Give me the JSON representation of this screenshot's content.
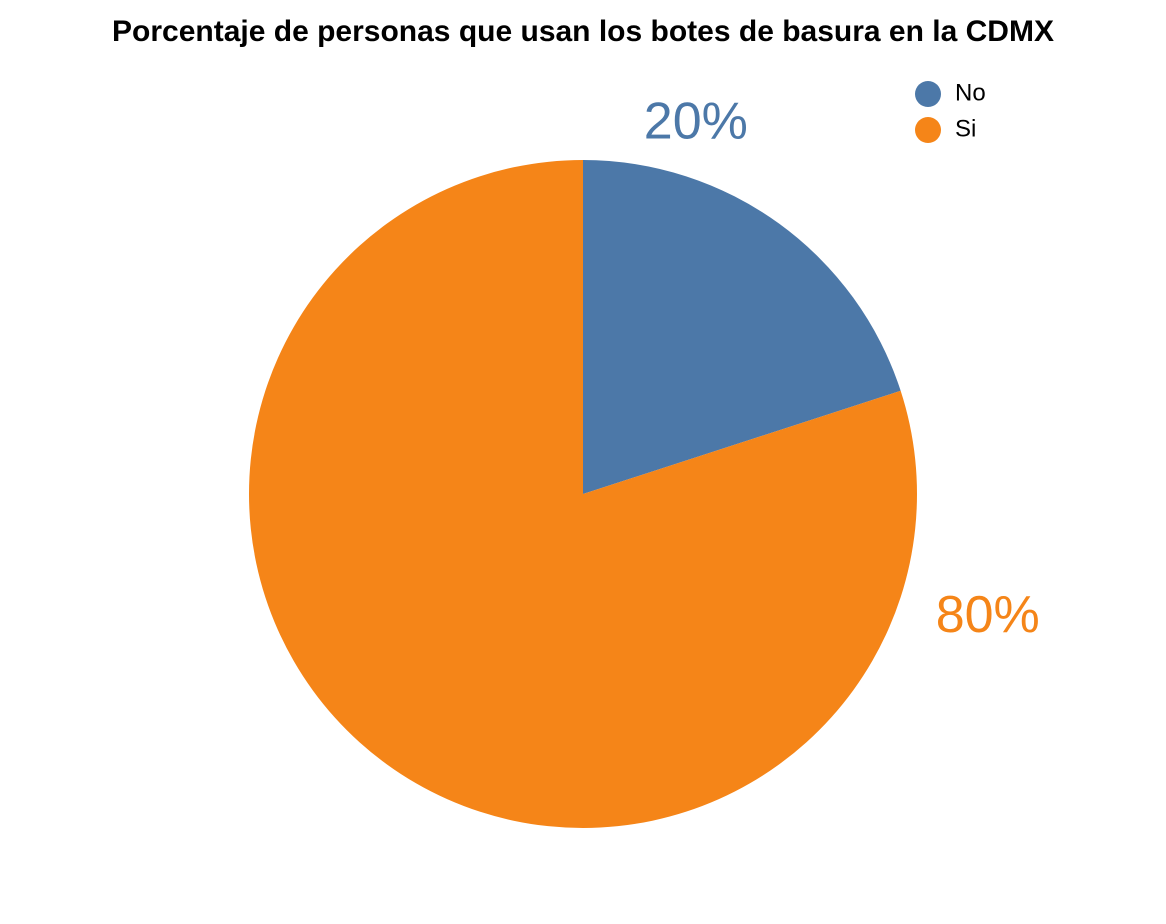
{
  "chart_data": {
    "type": "pie",
    "title": "Porcentaje de personas que usan los botes de basura en la CDMX",
    "slices": [
      {
        "label": "No",
        "value": 20,
        "display": "20%",
        "color": "#4c78a8"
      },
      {
        "label": "Si",
        "value": 80,
        "display": "80%",
        "color": "#f58518"
      }
    ],
    "legend": {
      "position": "top-right",
      "entries": [
        "No",
        "Si"
      ]
    },
    "start_angle": "12 o'clock",
    "direction": "clockwise"
  }
}
